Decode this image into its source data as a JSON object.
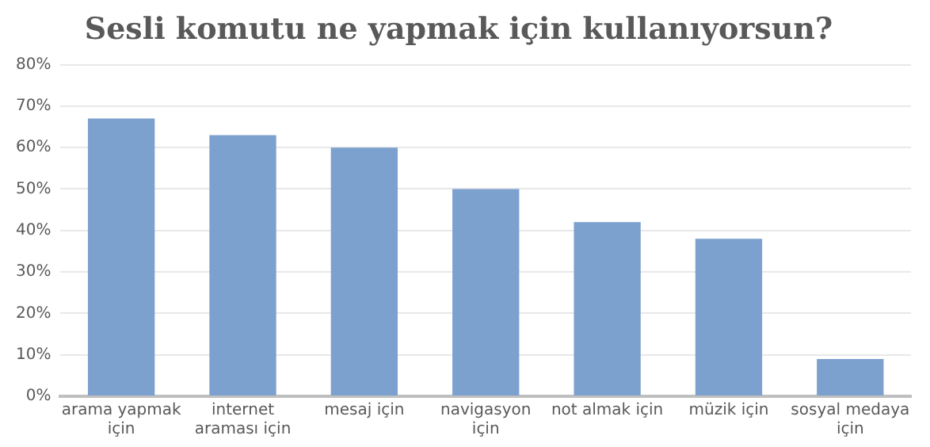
{
  "chart_data": {
    "type": "bar",
    "title": "Sesli komutu ne yapmak için kullanıyorsun?",
    "categories": [
      "arama yapmak için",
      "internet araması için",
      "mesaj için",
      "navigasyon için",
      "not almak için",
      "müzik için",
      "sosyal medaya için"
    ],
    "values": [
      67,
      63,
      60,
      50,
      42,
      38,
      9
    ],
    "color": "#7da1cf",
    "ylim": [
      0,
      80
    ],
    "yticks": [
      {
        "value": 0,
        "label": "0%"
      },
      {
        "value": 10,
        "label": "10%"
      },
      {
        "value": 20,
        "label": "20%"
      },
      {
        "value": 30,
        "label": "30%"
      },
      {
        "value": 40,
        "label": "40%"
      },
      {
        "value": 50,
        "label": "50%"
      },
      {
        "value": 60,
        "label": "60%"
      },
      {
        "value": 70,
        "label": "70%"
      },
      {
        "value": 80,
        "label": "80%"
      }
    ],
    "grid": "y",
    "legend": false
  }
}
